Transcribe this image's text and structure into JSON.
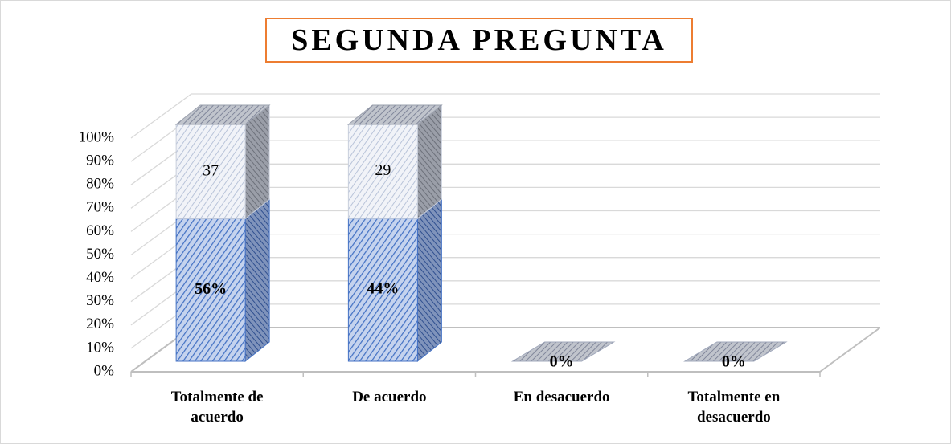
{
  "chart_data": {
    "type": "bar3d_stacked_percent",
    "title": "SEGUNDA PREGUNTA",
    "categories": [
      "Totalmente de acuerdo",
      "De acuerdo",
      "En desacuerdo",
      "Totalmente en desacuerdo"
    ],
    "series": [
      {
        "color": "#4472c4",
        "values": [
          56,
          44,
          0,
          0
        ],
        "value_labels": [
          "56%",
          "44%",
          "0%",
          "0%"
        ]
      },
      {
        "color": "#a5a5a5",
        "values": [
          37,
          29,
          null,
          null
        ]
      }
    ],
    "ylim": [
      0,
      100
    ],
    "yticks": [
      {
        "value": 0,
        "label": "0%"
      },
      {
        "value": 10,
        "label": "10%"
      },
      {
        "value": 20,
        "label": "20%"
      },
      {
        "value": 30,
        "label": "30%"
      },
      {
        "value": 40,
        "label": "40%"
      },
      {
        "value": 50,
        "label": "50%"
      },
      {
        "value": 60,
        "label": "60%"
      },
      {
        "value": 70,
        "label": "70%"
      },
      {
        "value": 80,
        "label": "80%"
      },
      {
        "value": 90,
        "label": "90%"
      },
      {
        "value": 100,
        "label": "100%"
      }
    ],
    "grid": true
  }
}
